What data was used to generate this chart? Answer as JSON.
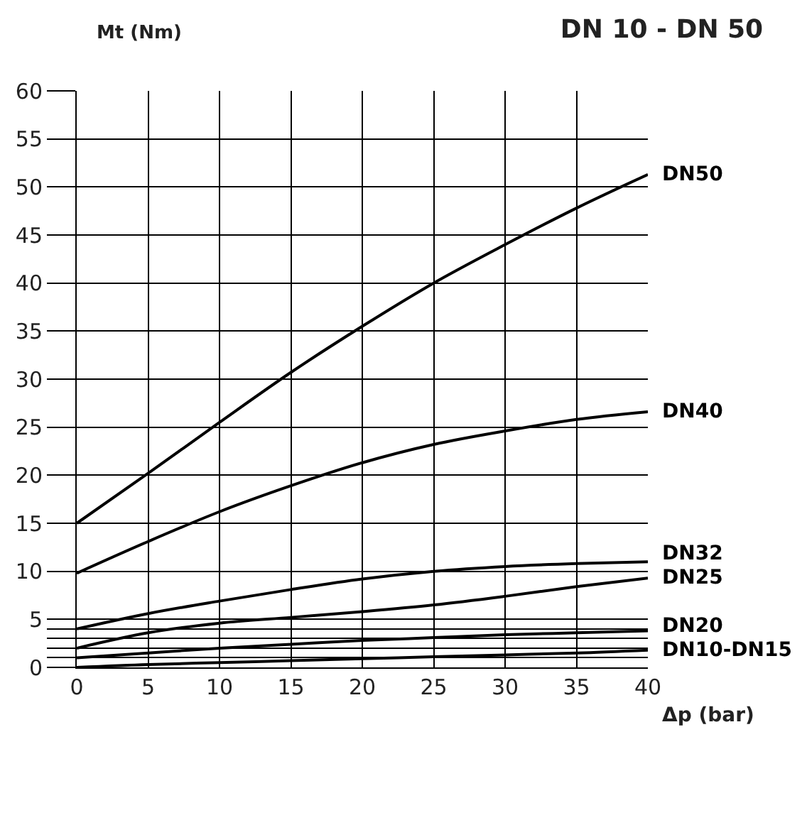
{
  "chart_data": {
    "type": "line",
    "title": "DN 10 - DN 50",
    "xlabel": "Δp (bar)",
    "ylabel": "Mt (Nm)",
    "x": [
      0,
      5,
      10,
      15,
      20,
      25,
      30,
      35,
      40
    ],
    "series": [
      {
        "name": "DN50",
        "color": "#000000",
        "values": [
          15,
          20.2,
          25.5,
          30.7,
          35.5,
          40,
          44,
          47.8,
          51.3
        ]
      },
      {
        "name": "DN40",
        "color": "#000000",
        "values": [
          9.8,
          13.1,
          16.2,
          18.9,
          21.3,
          23.2,
          24.6,
          25.8,
          26.6
        ]
      },
      {
        "name": "DN32",
        "color": "#000000",
        "values": [
          4,
          5.6,
          6.9,
          8.1,
          9.2,
          10,
          10.5,
          10.8,
          11
        ]
      },
      {
        "name": "DN25",
        "color": "#000000",
        "values": [
          2,
          3.6,
          4.6,
          5.2,
          5.8,
          6.5,
          7.4,
          8.4,
          9.3
        ]
      },
      {
        "name": "DN20",
        "color": "#000000",
        "values": [
          1,
          1.5,
          2,
          2.4,
          2.8,
          3.1,
          3.4,
          3.6,
          3.8
        ]
      },
      {
        "name": "DN10-DN15",
        "color": "#000000",
        "values": [
          0,
          0.3,
          0.5,
          0.7,
          0.9,
          1.1,
          1.3,
          1.5,
          1.8
        ]
      }
    ],
    "xlim": [
      0,
      40
    ],
    "xticks": [
      0,
      5,
      10,
      15,
      20,
      25,
      30,
      35,
      40
    ],
    "ylim": [
      0,
      60
    ],
    "yticks": [
      0,
      {
        "value": 1,
        "label": null
      },
      {
        "value": 2,
        "label": null
      },
      {
        "value": 3,
        "label": null
      },
      {
        "value": 4,
        "label": null
      },
      5,
      10,
      15,
      20,
      25,
      30,
      35,
      40,
      45,
      50,
      55,
      60
    ],
    "grid": true,
    "legend": false,
    "marker": "none",
    "line_style": "solid"
  }
}
